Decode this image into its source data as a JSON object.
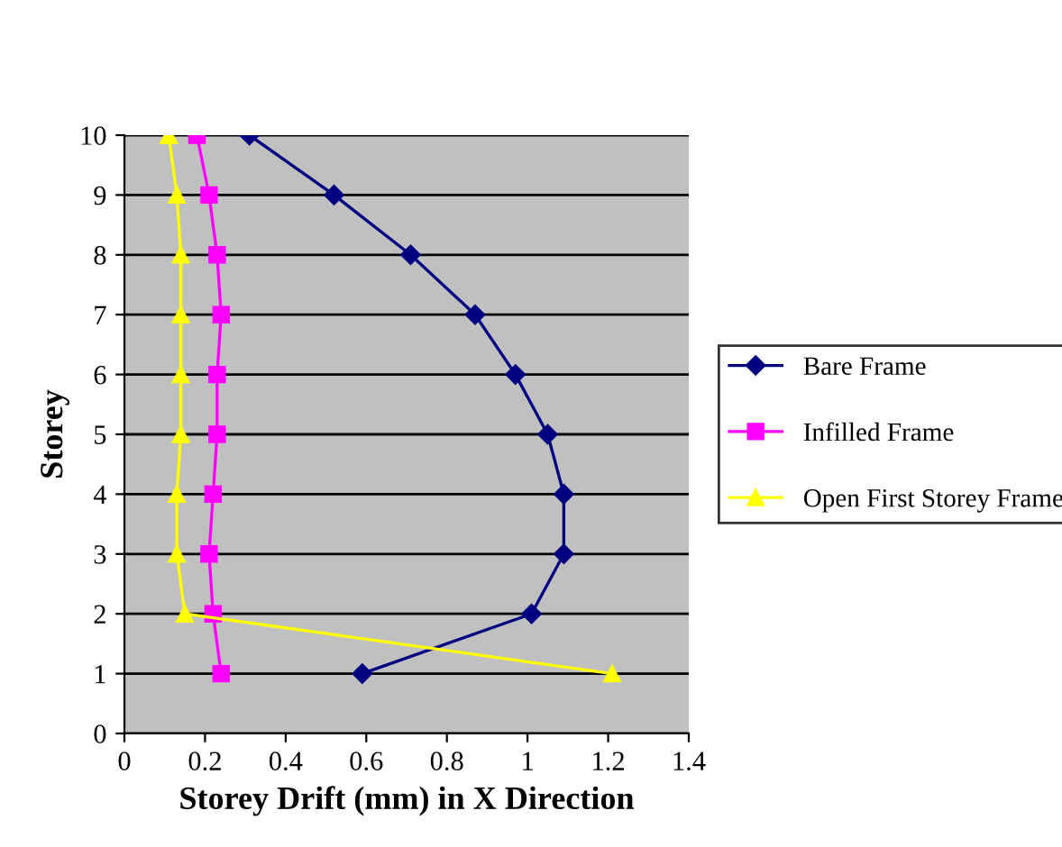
{
  "chart_data": {
    "type": "line",
    "xlabel": "Storey Drift (mm) in X Direction",
    "ylabel": "Storey",
    "series": [
      {
        "name": "Bare Frame",
        "color": "#000080",
        "marker": "diamond",
        "x": [
          0.31,
          0.52,
          0.71,
          0.87,
          0.97,
          1.05,
          1.09,
          1.09,
          1.01,
          0.59
        ],
        "values": [
          10,
          9,
          8,
          7,
          6,
          5,
          4,
          3,
          2,
          1
        ]
      },
      {
        "name": "Infilled Frame",
        "color": "#ff00ff",
        "marker": "square",
        "x": [
          0.18,
          0.21,
          0.23,
          0.24,
          0.23,
          0.23,
          0.22,
          0.21,
          0.22,
          0.24
        ],
        "values": [
          10,
          9,
          8,
          7,
          6,
          5,
          4,
          3,
          2,
          1
        ]
      },
      {
        "name": "Open First Storey Frame",
        "color": "#ffff00",
        "marker": "triangle",
        "x": [
          0.11,
          0.13,
          0.14,
          0.14,
          0.14,
          0.14,
          0.13,
          0.13,
          0.15,
          1.21
        ],
        "values": [
          10,
          9,
          8,
          7,
          6,
          5,
          4,
          3,
          2,
          1
        ]
      }
    ],
    "xlim": [
      0,
      1.4
    ],
    "xticks": [
      0,
      0.2,
      0.4,
      0.6,
      0.8,
      1,
      1.2,
      1.4
    ],
    "ylim": [
      0,
      10
    ],
    "yticks": [
      0,
      1,
      2,
      3,
      4,
      5,
      6,
      7,
      8,
      9,
      10
    ],
    "grid": "y",
    "legend": "right"
  }
}
